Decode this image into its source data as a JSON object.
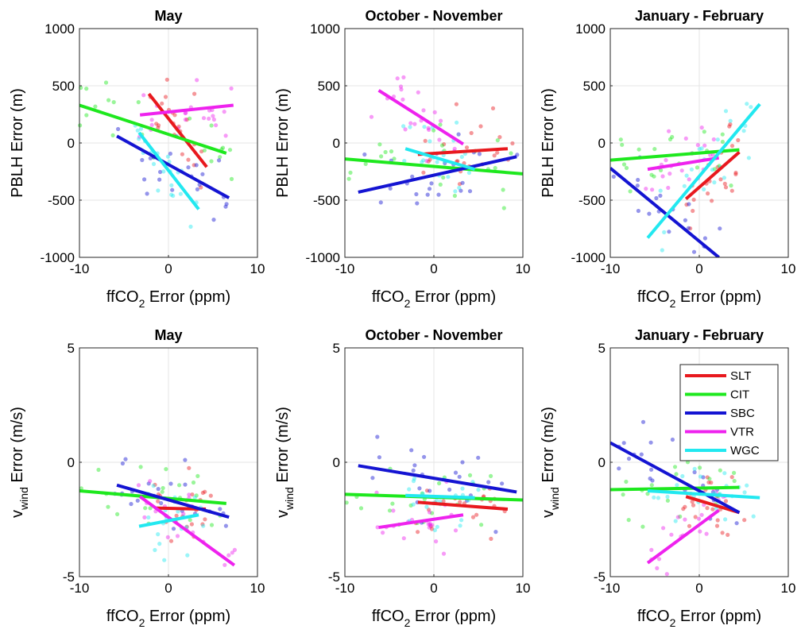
{
  "series_names": [
    "SLT",
    "CIT",
    "SBC",
    "VTR",
    "WGC"
  ],
  "series_colors": {
    "SLT": "#e8191e",
    "CIT": "#1ee81e",
    "SBC": "#1414d2",
    "VTR": "#ee22ee",
    "WGC": "#22e8f0"
  },
  "axis_labels": {
    "x_main": "ffCO",
    "x_sub": "2",
    "x_rest": " Error (ppm)",
    "y_top": "PBLH Error (m)",
    "y_bottom_main": "v",
    "y_bottom_sub": "wind",
    "y_bottom_rest": " Error (m/s)"
  },
  "chart_data": [
    {
      "type": "scatter",
      "title": "May",
      "row": 0,
      "col": 0,
      "xlim": [
        -10,
        10
      ],
      "ylim": [
        -1000,
        1000
      ],
      "xticks": [
        "-10",
        "0",
        "10"
      ],
      "yticks": [
        "1000",
        "500",
        "0",
        "-500",
        "-1000"
      ],
      "grid": true,
      "lines": [
        {
          "name": "SLT",
          "x": [
            -2.2,
            4.3
          ],
          "y": [
            430,
            -210
          ]
        },
        {
          "name": "CIT",
          "x": [
            -10,
            6.5
          ],
          "y": [
            330,
            -90
          ]
        },
        {
          "name": "SBC",
          "x": [
            -5.8,
            6.8
          ],
          "y": [
            60,
            -480
          ]
        },
        {
          "name": "VTR",
          "x": [
            -3.2,
            7.3
          ],
          "y": [
            245,
            330
          ]
        },
        {
          "name": "WGC",
          "x": [
            -3.3,
            3.4
          ],
          "y": [
            90,
            -580
          ]
        }
      ]
    },
    {
      "type": "scatter",
      "title": "October - November",
      "row": 0,
      "col": 1,
      "xlim": [
        -10,
        10
      ],
      "ylim": [
        -1000,
        1000
      ],
      "xticks": [
        "-10",
        "0",
        "10"
      ],
      "yticks": [
        "1000",
        "500",
        "0",
        "-500",
        "-1000"
      ],
      "grid": true,
      "lines": [
        {
          "name": "SLT",
          "x": [
            -1.8,
            8.3
          ],
          "y": [
            -100,
            -50
          ]
        },
        {
          "name": "CIT",
          "x": [
            -10,
            10
          ],
          "y": [
            -140,
            -270
          ]
        },
        {
          "name": "SBC",
          "x": [
            -8.5,
            9.3
          ],
          "y": [
            -430,
            -120
          ]
        },
        {
          "name": "VTR",
          "x": [
            -6.2,
            3.3
          ],
          "y": [
            460,
            -10
          ]
        },
        {
          "name": "WGC",
          "x": [
            -3.2,
            4.6
          ],
          "y": [
            -50,
            -230
          ]
        }
      ]
    },
    {
      "type": "scatter",
      "title": "January - February",
      "row": 0,
      "col": 2,
      "xlim": [
        -10,
        10
      ],
      "ylim": [
        -1000,
        1000
      ],
      "xticks": [
        "-10",
        "0",
        "10"
      ],
      "yticks": [
        "1000",
        "500",
        "0",
        "-500",
        "-1000"
      ],
      "grid": true,
      "lines": [
        {
          "name": "SLT",
          "x": [
            -1.5,
            4.5
          ],
          "y": [
            -490,
            -80
          ]
        },
        {
          "name": "CIT",
          "x": [
            -10,
            4.5
          ],
          "y": [
            -150,
            -60
          ]
        },
        {
          "name": "SBC",
          "x": [
            -10,
            2.2
          ],
          "y": [
            -220,
            -1000
          ]
        },
        {
          "name": "VTR",
          "x": [
            -5.8,
            2.2
          ],
          "y": [
            -230,
            -130
          ]
        },
        {
          "name": "WGC",
          "x": [
            -5.8,
            6.8
          ],
          "y": [
            -830,
            340
          ]
        }
      ]
    },
    {
      "type": "scatter",
      "title": "May",
      "row": 1,
      "col": 0,
      "xlim": [
        -10,
        10
      ],
      "ylim": [
        -5,
        5
      ],
      "xticks": [
        "-10",
        "0",
        "10"
      ],
      "yticks": [
        "5",
        "0",
        "-5"
      ],
      "grid": true,
      "lines": [
        {
          "name": "SLT",
          "x": [
            -1.5,
            4.2
          ],
          "y": [
            -2.0,
            -2.05
          ]
        },
        {
          "name": "CIT",
          "x": [
            -10,
            6.5
          ],
          "y": [
            -1.25,
            -1.8
          ]
        },
        {
          "name": "SBC",
          "x": [
            -5.8,
            6.8
          ],
          "y": [
            -1.0,
            -2.4
          ]
        },
        {
          "name": "VTR",
          "x": [
            -3.2,
            7.4
          ],
          "y": [
            -1.5,
            -4.5
          ]
        },
        {
          "name": "WGC",
          "x": [
            -3.3,
            3.4
          ],
          "y": [
            -2.8,
            -2.3
          ]
        }
      ]
    },
    {
      "type": "scatter",
      "title": "October - November",
      "row": 1,
      "col": 1,
      "xlim": [
        -10,
        10
      ],
      "ylim": [
        -5,
        5
      ],
      "xticks": [
        "-10",
        "0",
        "10"
      ],
      "yticks": [
        "5",
        "0",
        "-5"
      ],
      "grid": true,
      "lines": [
        {
          "name": "SLT",
          "x": [
            -1.8,
            8.3
          ],
          "y": [
            -1.75,
            -2.05
          ]
        },
        {
          "name": "CIT",
          "x": [
            -10,
            10
          ],
          "y": [
            -1.4,
            -1.65
          ]
        },
        {
          "name": "SBC",
          "x": [
            -8.5,
            9.3
          ],
          "y": [
            -0.15,
            -1.3
          ]
        },
        {
          "name": "VTR",
          "x": [
            -6.2,
            3.3
          ],
          "y": [
            -2.85,
            -2.3
          ]
        },
        {
          "name": "WGC",
          "x": [
            -3.2,
            4.6
          ],
          "y": [
            -1.45,
            -1.55
          ]
        }
      ]
    },
    {
      "type": "scatter",
      "title": "January - February",
      "row": 1,
      "col": 2,
      "xlim": [
        -10,
        10
      ],
      "ylim": [
        -5,
        5
      ],
      "xticks": [
        "-10",
        "0",
        "10"
      ],
      "yticks": [
        "5",
        "0",
        "-5"
      ],
      "grid": true,
      "legend": "top-right",
      "lines": [
        {
          "name": "SLT",
          "x": [
            -1.5,
            4.5
          ],
          "y": [
            -1.5,
            -2.2
          ]
        },
        {
          "name": "CIT",
          "x": [
            -10,
            4.5
          ],
          "y": [
            -1.2,
            -1.1
          ]
        },
        {
          "name": "SBC",
          "x": [
            -10,
            4.5
          ],
          "y": [
            0.85,
            -2.2
          ]
        },
        {
          "name": "VTR",
          "x": [
            -5.8,
            2.2
          ],
          "y": [
            -4.4,
            -2.1
          ]
        },
        {
          "name": "WGC",
          "x": [
            -5.8,
            6.8
          ],
          "y": [
            -1.25,
            -1.55
          ]
        }
      ]
    }
  ]
}
